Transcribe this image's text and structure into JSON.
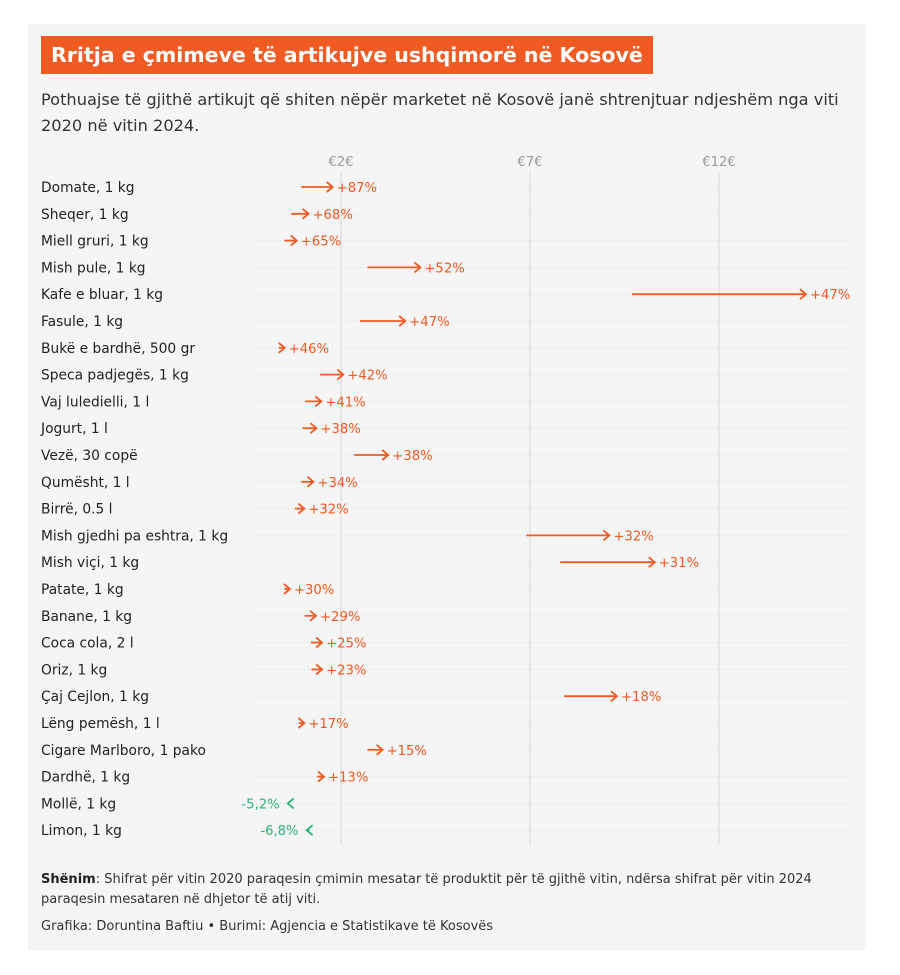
{
  "header": {
    "title": "Rritja e çmimeve të artikujve ushqimorë në Kosovë",
    "subtitle": "Pothuajse të gjithë artikujt që shiten nëpër marketet në Kosovë janë shtrenjtuar ndjeshëm nga viti 2020 në vitin 2024."
  },
  "footer": {
    "note_label": "Shënim",
    "note_text": ": Shifrat për vitin 2020 paraqesin çmimin mesatar të produktit për të gjithë vitin, ndërsa shifrat për vitin 2024 paraqesin mesataren në dhjetor të atij viti.",
    "credit": "Grafika: Doruntina Baftiu • Burimi: Agjencia e Statistikave të Kosovës"
  },
  "colors": {
    "increase": "#f15a22",
    "decrease": "#2bb673",
    "gridline": "#d8d8d8",
    "title_bg": "#f15a22"
  },
  "chart_data": {
    "type": "arrow",
    "x_unit": "€",
    "x_ticks": [
      2,
      7,
      12
    ],
    "x_tick_labels": [
      "€2€",
      "€7€",
      "€12€"
    ],
    "rows": [
      {
        "label": "Domate, 1 kg",
        "from": 0.95,
        "to": 1.78,
        "change": "+87%"
      },
      {
        "label": "Sheqer, 1 kg",
        "from": 0.68,
        "to": 1.14,
        "change": "+68%"
      },
      {
        "label": "Miell gruri, 1 kg",
        "from": 0.5,
        "to": 0.83,
        "change": "+65%"
      },
      {
        "label": "Mish pule, 1 kg",
        "from": 2.7,
        "to": 4.1,
        "change": "+52%"
      },
      {
        "label": "Kafe e bluar, 1 kg",
        "from": 9.7,
        "to": 14.3,
        "change": "+47%"
      },
      {
        "label": "Fasule, 1 kg",
        "from": 2.5,
        "to": 3.7,
        "change": "+47%"
      },
      {
        "label": "Bukë e bardhë, 500 gr",
        "from": 0.35,
        "to": 0.51,
        "change": "+46%"
      },
      {
        "label": "Speca padjegës, 1 kg",
        "from": 1.45,
        "to": 2.06,
        "change": "+42%"
      },
      {
        "label": "Vaj luledielli, 1 l",
        "from": 1.05,
        "to": 1.48,
        "change": "+41%"
      },
      {
        "label": "Jogurt, 1 l",
        "from": 0.98,
        "to": 1.35,
        "change": "+38%"
      },
      {
        "label": "Vezë, 30 copë",
        "from": 2.35,
        "to": 3.25,
        "change": "+38%"
      },
      {
        "label": "Qumësht, 1 l",
        "from": 0.95,
        "to": 1.27,
        "change": "+34%"
      },
      {
        "label": "Birrë, 0.5 l",
        "from": 0.78,
        "to": 1.03,
        "change": "+32%"
      },
      {
        "label": "Mish gjedhi pa eshtra, 1 kg",
        "from": 6.9,
        "to": 9.1,
        "change": "+32%"
      },
      {
        "label": "Mish viçi, 1 kg",
        "from": 7.8,
        "to": 10.3,
        "change": "+31%"
      },
      {
        "label": "Patate, 1 kg",
        "from": 0.5,
        "to": 0.65,
        "change": "+30%"
      },
      {
        "label": "Banane, 1 kg",
        "from": 1.04,
        "to": 1.34,
        "change": "+29%"
      },
      {
        "label": "Coca cola, 2 l",
        "from": 1.2,
        "to": 1.5,
        "change": "+25%"
      },
      {
        "label": "Oriz, 1 kg",
        "from": 1.22,
        "to": 1.5,
        "change": "+23%"
      },
      {
        "label": "Çaj Cejlon, 1 kg",
        "from": 7.9,
        "to": 9.3,
        "change": "+18%"
      },
      {
        "label": "Lëng pemësh, 1 l",
        "from": 0.88,
        "to": 1.03,
        "change": "+17%"
      },
      {
        "label": "Cigare Marlboro, 1 pako",
        "from": 2.7,
        "to": 3.1,
        "change": "+15%"
      },
      {
        "label": "Dardhë, 1 kg",
        "from": 1.37,
        "to": 1.55,
        "change": "+13%"
      },
      {
        "label": "Mollë, 1 kg",
        "from": 0.62,
        "to": 0.59,
        "change": "-5,2%"
      },
      {
        "label": "Limon, 1 kg",
        "from": 1.17,
        "to": 1.09,
        "change": "-6,8%"
      }
    ]
  }
}
